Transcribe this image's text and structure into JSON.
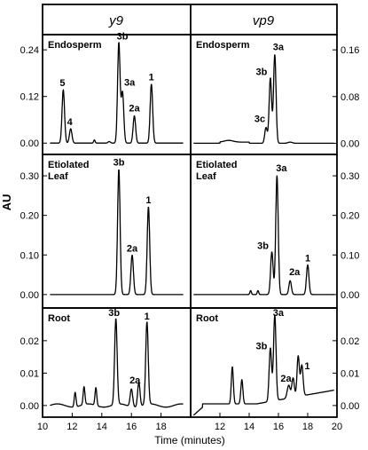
{
  "figure": {
    "column_headers": [
      "y9",
      "vp9"
    ],
    "y_axis_label": "AU",
    "x_axis_label": "Time (minutes)",
    "x_ticks": [
      10,
      12,
      14,
      16,
      18,
      20
    ]
  },
  "chart_data": [
    {
      "type": "line",
      "panel": "y9-endosperm",
      "label": "Endosperm",
      "column": "y9",
      "row": "Endosperm",
      "xlim": [
        10,
        20
      ],
      "ylim": [
        -0.02,
        0.27
      ],
      "y_ticks": [
        "0.00",
        "0.12",
        "0.24"
      ],
      "y_tick_values": [
        0,
        0.12,
        0.24
      ],
      "y_tick_side": "left",
      "peaks": [
        {
          "label": "5",
          "x": 11.4,
          "y": 0.137
        },
        {
          "label": "4",
          "x": 11.9,
          "y": 0.037
        },
        {
          "label": "3b",
          "x": 15.15,
          "y": 0.258
        },
        {
          "label": "3a",
          "x": 15.4,
          "y": 0.13
        },
        {
          "label": "2a",
          "x": 16.2,
          "y": 0.07
        },
        {
          "label": "1",
          "x": 17.35,
          "y": 0.152
        }
      ]
    },
    {
      "type": "line",
      "panel": "vp9-endosperm",
      "label": "Endosperm",
      "column": "vp9",
      "row": "Endosperm",
      "xlim": [
        10,
        20
      ],
      "ylim": [
        -0.013,
        0.18
      ],
      "y_ticks": [
        "0.00",
        "0.08",
        "0.16"
      ],
      "y_tick_values": [
        0,
        0.08,
        0.16
      ],
      "y_tick_side": "right",
      "peaks": [
        {
          "label": "3c",
          "x": 15.15,
          "y": 0.027
        },
        {
          "label": "3b",
          "x": 15.45,
          "y": 0.112
        },
        {
          "label": "3a",
          "x": 15.75,
          "y": 0.152
        }
      ]
    },
    {
      "type": "line",
      "panel": "y9-etiolated-leaf",
      "label": "Etiolated Leaf",
      "column": "y9",
      "row": "Etiolated Leaf",
      "xlim": [
        10,
        20
      ],
      "ylim": [
        -0.025,
        0.345
      ],
      "y_ticks": [
        "0.00",
        "0.10",
        "0.20",
        "0.30"
      ],
      "y_tick_values": [
        0,
        0.1,
        0.2,
        0.3
      ],
      "y_tick_side": "left",
      "peaks": [
        {
          "label": "3b",
          "x": 15.15,
          "y": 0.317
        },
        {
          "label": "2a",
          "x": 16.05,
          "y": 0.1
        },
        {
          "label": "1",
          "x": 17.15,
          "y": 0.222
        }
      ]
    },
    {
      "type": "line",
      "panel": "vp9-etiolated-leaf",
      "label": "Etiolated Leaf",
      "column": "vp9",
      "row": "Etiolated Leaf",
      "xlim": [
        10,
        20
      ],
      "ylim": [
        -0.025,
        0.345
      ],
      "y_ticks": [
        "0.00",
        "0.10",
        "0.20",
        "0.30"
      ],
      "y_tick_values": [
        0,
        0.1,
        0.2,
        0.3
      ],
      "y_tick_side": "right",
      "peaks": [
        {
          "label": "3b",
          "x": 15.55,
          "y": 0.108
        },
        {
          "label": "3a",
          "x": 15.9,
          "y": 0.3
        },
        {
          "label": "2a",
          "x": 16.8,
          "y": 0.035
        },
        {
          "label": "1",
          "x": 18.0,
          "y": 0.075
        }
      ]
    },
    {
      "type": "line",
      "panel": "y9-root",
      "label": "Root",
      "column": "y9",
      "row": "Root",
      "xlim": [
        10,
        20
      ],
      "ylim": [
        -0.0025,
        0.029
      ],
      "y_ticks": [
        "0.00",
        "0.01",
        "0.02"
      ],
      "y_tick_values": [
        0,
        0.01,
        0.02
      ],
      "y_tick_side": "left",
      "peaks": [
        {
          "label": "3b",
          "x": 14.95,
          "y": 0.0265
        },
        {
          "label": "2a",
          "x": 16.0,
          "y": 0.0055
        },
        {
          "label": "1",
          "x": 17.05,
          "y": 0.0255
        }
      ]
    },
    {
      "type": "line",
      "panel": "vp9-root",
      "label": "Root",
      "column": "vp9",
      "row": "Root",
      "xlim": [
        10,
        20
      ],
      "ylim": [
        -0.0025,
        0.029
      ],
      "y_ticks": [
        "0.00",
        "0.01",
        "0.02"
      ],
      "y_tick_values": [
        0,
        0.01,
        0.02
      ],
      "y_tick_side": "right",
      "peaks": [
        {
          "label": "3b",
          "x": 15.45,
          "y": 0.0165
        },
        {
          "label": "3a",
          "x": 15.75,
          "y": 0.0265
        },
        {
          "label": "2a",
          "x": 17.0,
          "y": 0.006
        },
        {
          "label": "1",
          "x": 17.6,
          "y": 0.0095
        }
      ]
    }
  ]
}
